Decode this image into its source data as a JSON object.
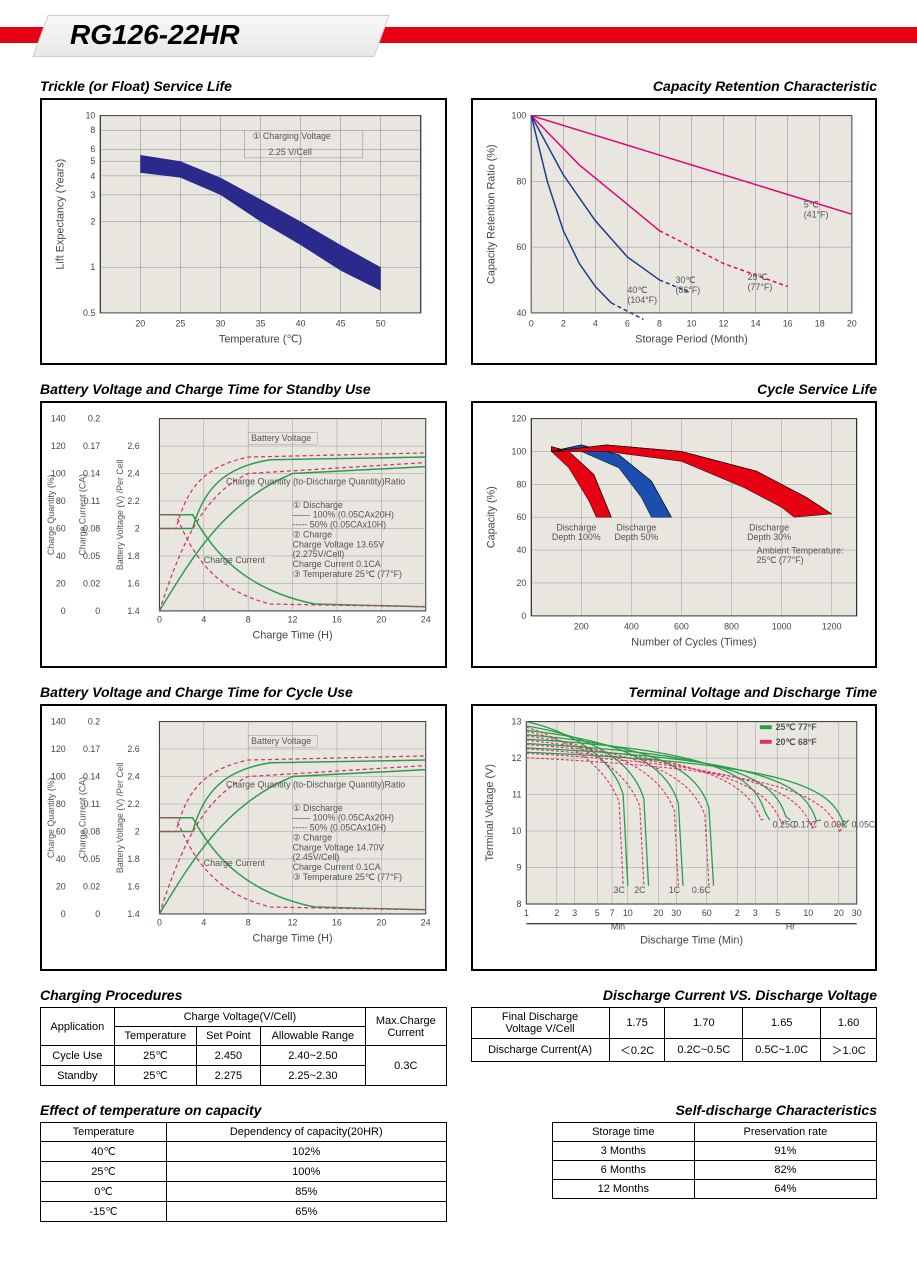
{
  "header": {
    "model": "RG126-22HR"
  },
  "trickle": {
    "title": "Trickle (or Float) Service Life",
    "xlabel": "Temperature (℃)",
    "ylabel": "Lift  Expectancy (Years)",
    "yticks": [
      0.5,
      1,
      2,
      3,
      4,
      5,
      6,
      8,
      10
    ],
    "xticks": [
      20,
      25,
      30,
      35,
      40,
      45,
      50
    ],
    "note1": "① Charging Voltage",
    "note2": "2.25 V/Cell",
    "band": [
      [
        20,
        5.5,
        4.2
      ],
      [
        25,
        5.0,
        3.9
      ],
      [
        30,
        3.9,
        3.0
      ],
      [
        35,
        2.8,
        2.0
      ],
      [
        40,
        2.0,
        1.4
      ],
      [
        45,
        1.4,
        0.95
      ],
      [
        50,
        1.0,
        0.7
      ]
    ],
    "band_color": "#2a2a8c",
    "bg": "#e8e6df",
    "grid_color": "#888"
  },
  "retention": {
    "title": "Capacity Retention Characteristic",
    "xlabel": "Storage Period (Month)",
    "ylabel": "Capacity Retention Ratio (%)",
    "xticks": [
      0,
      2,
      4,
      6,
      8,
      10,
      12,
      14,
      16,
      18,
      20
    ],
    "yticks": [
      40,
      60,
      80,
      100
    ],
    "bg": "#e8e6df",
    "grid_color": "#888",
    "lines": [
      {
        "color": "#e6007e",
        "label": "5℃\n(41°F)",
        "pts": [
          [
            0,
            100
          ],
          [
            4,
            94
          ],
          [
            8,
            88
          ],
          [
            12,
            82
          ],
          [
            16,
            76
          ],
          [
            20,
            70
          ]
        ]
      },
      {
        "color": "#e6007e",
        "label": "25℃\n(77°F)",
        "solid_pts": [
          [
            0,
            100
          ],
          [
            3,
            85
          ],
          [
            6,
            73
          ],
          [
            8,
            65
          ]
        ],
        "dash_pts": [
          [
            8,
            65
          ],
          [
            12,
            55
          ],
          [
            16,
            48
          ]
        ]
      },
      {
        "color": "#1a3a8c",
        "label": "30℃\n(86°F)",
        "solid_pts": [
          [
            0,
            100
          ],
          [
            2,
            82
          ],
          [
            4,
            68
          ],
          [
            6,
            57
          ],
          [
            8,
            50
          ]
        ],
        "dash_pts": [
          [
            8,
            50
          ],
          [
            10,
            46
          ]
        ]
      },
      {
        "color": "#1a3a8c",
        "label": "40℃\n(104°F)",
        "solid_pts": [
          [
            0,
            100
          ],
          [
            1,
            80
          ],
          [
            2,
            65
          ],
          [
            3,
            55
          ],
          [
            4,
            48
          ],
          [
            5,
            43
          ]
        ],
        "dash_pts": [
          [
            5,
            43
          ],
          [
            7,
            38
          ]
        ]
      }
    ]
  },
  "standby": {
    "title": "Battery Voltage and Charge Time for Standby Use",
    "xlabel": "Charge Time (H)",
    "y1label": "Charge Quantity (%)",
    "y2label": "Charge Current (CA)",
    "y3label": "Battery Voltage (V) /Per Cell",
    "xticks": [
      0,
      4,
      8,
      12,
      16,
      20,
      24
    ],
    "y1ticks": [
      0,
      20,
      40,
      60,
      80,
      100,
      120,
      140
    ],
    "y2ticks": [
      0,
      0.02,
      0.05,
      0.08,
      0.11,
      0.14,
      0.17,
      0.2
    ],
    "y3ticks": [
      1.4,
      1.6,
      1.8,
      2.0,
      2.2,
      2.4,
      2.6
    ],
    "notes": [
      "① Discharge",
      "—— 100% (0.05CAx20H)",
      "----- 50% (0.05CAx10H)",
      "② Charge",
      "Charge Voltage 13.65V",
      "(2.275V/Cell)",
      "Charge Current 0.1CA",
      "③ Temperature 25℃ (77°F)"
    ],
    "label_bv": "Battery Voltage",
    "label_cq": "Charge Quantity (to-Discharge Quantity)Ratio",
    "label_cc": "Charge Current",
    "solid_color": "#2a9d4a",
    "dash_color": "#d6336c"
  },
  "cycle_life": {
    "title": "Cycle Service Life",
    "xlabel": "Number of Cycles (Times)",
    "ylabel": "Capacity (%)",
    "xticks": [
      200,
      400,
      600,
      800,
      1000,
      1200
    ],
    "yticks": [
      0,
      20,
      40,
      60,
      80,
      100,
      120
    ],
    "bands": [
      {
        "color": "#e60012",
        "label": "Discharge\nDepth 100%",
        "pts_top": [
          [
            80,
            103
          ],
          [
            150,
            100
          ],
          [
            250,
            86
          ],
          [
            320,
            60
          ]
        ],
        "pts_bot": [
          [
            80,
            100
          ],
          [
            150,
            90
          ],
          [
            230,
            70
          ],
          [
            260,
            60
          ]
        ]
      },
      {
        "color": "#1a4fb0",
        "label": "Discharge\nDepth 50%",
        "pts_top": [
          [
            80,
            100
          ],
          [
            200,
            104
          ],
          [
            350,
            98
          ],
          [
            480,
            82
          ],
          [
            560,
            60
          ]
        ],
        "pts_bot": [
          [
            80,
            100
          ],
          [
            200,
            100
          ],
          [
            350,
            90
          ],
          [
            440,
            72
          ],
          [
            480,
            60
          ]
        ]
      },
      {
        "color": "#e60012",
        "label": "Discharge\nDepth 30%",
        "pts_top": [
          [
            80,
            100
          ],
          [
            300,
            104
          ],
          [
            600,
            100
          ],
          [
            900,
            88
          ],
          [
            1100,
            72
          ],
          [
            1200,
            62
          ]
        ],
        "pts_bot": [
          [
            80,
            100
          ],
          [
            300,
            100
          ],
          [
            600,
            94
          ],
          [
            850,
            78
          ],
          [
            1000,
            66
          ],
          [
            1050,
            60
          ]
        ]
      }
    ],
    "note": "Ambient Temperature:\n25℃  (77°F)"
  },
  "cycle_use": {
    "title": "Battery Voltage and Charge Time for Cycle Use",
    "xlabel": "Charge Time (H)",
    "notes": [
      "① Discharge",
      "—— 100% (0.05CAx20H)",
      "----- 50% (0.05CAx10H)",
      "② Charge",
      "Charge Voltage 14.70V",
      "(2.45V/Cell)",
      "Charge Current 0.1CA",
      "③ Temperature 25℃ (77°F)"
    ]
  },
  "terminal": {
    "title": "Terminal Voltage and Discharge Time",
    "xlabel": "Discharge Time (Min)",
    "ylabel": "Terminal Voltage (V)",
    "yticks": [
      8,
      9,
      10,
      11,
      12,
      13
    ],
    "xlabels_min": [
      "1",
      "2",
      "3",
      "5",
      "7",
      "10",
      "20",
      "30",
      "60"
    ],
    "xlabels_hr": [
      "2",
      "3",
      "5",
      "10",
      "20",
      "30"
    ],
    "min_label": "Min",
    "hr_label": "Hr",
    "legend25": "25℃ 77°F",
    "legend20": "20℃ 68°F",
    "c_labels": [
      "3C",
      "2C",
      "1C",
      "0.6C",
      "0.25C",
      "0.17C",
      "0.09C",
      "0.05C"
    ],
    "solid_color": "#2a9d4a",
    "dash_color": "#d6336c"
  },
  "charging_proc": {
    "title": "Charging Procedures",
    "headers": {
      "app": "Application",
      "cv": "Charge Voltage(V/Cell)",
      "temp": "Temperature",
      "sp": "Set Point",
      "ar": "Allowable Range",
      "mc": "Max.Charge\nCurrent"
    },
    "rows": [
      {
        "app": "Cycle Use",
        "temp": "25℃",
        "sp": "2.450",
        "ar": "2.40~2.50"
      },
      {
        "app": "Standby",
        "temp": "25℃",
        "sp": "2.275",
        "ar": "2.25~2.30"
      }
    ],
    "max_current": "0.3C"
  },
  "discharge_iv": {
    "title": "Discharge Current VS. Discharge Voltage",
    "h1": "Final Discharge\nVoltage V/Cell",
    "vcols": [
      "1.75",
      "1.70",
      "1.65",
      "1.60"
    ],
    "h2": "Discharge Current(A)",
    "ccols": [
      "＜0.2C",
      "0.2C~0.5C",
      "0.5C~1.0C",
      "＞1.0C"
    ]
  },
  "temp_effect": {
    "title": "Effect of temperature on capacity",
    "h1": "Temperature",
    "h2": "Dependency of capacity(20HR)",
    "rows": [
      [
        "40℃",
        "102%"
      ],
      [
        "25℃",
        "100%"
      ],
      [
        "0℃",
        "85%"
      ],
      [
        "-15℃",
        "65%"
      ]
    ]
  },
  "self_discharge": {
    "title": "Self-discharge Characteristics",
    "h1": "Storage time",
    "h2": "Preservation rate",
    "rows": [
      [
        "3 Months",
        "91%"
      ],
      [
        "6 Months",
        "82%"
      ],
      [
        "12 Months",
        "64%"
      ]
    ]
  }
}
